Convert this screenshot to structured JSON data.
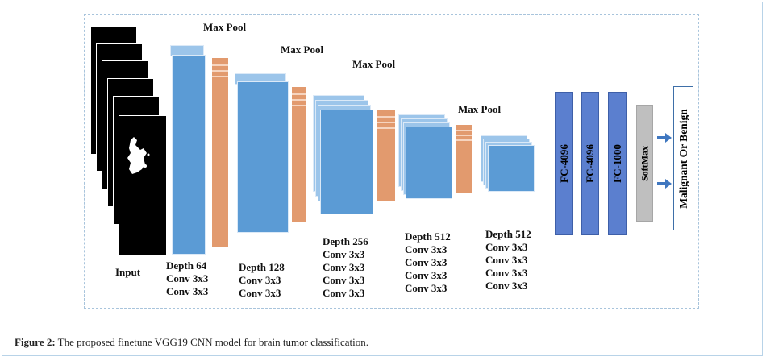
{
  "labels": {
    "maxpool": "Max Pool",
    "input": "Input",
    "stage1": [
      "Depth 64",
      "Conv 3x3",
      "Conv 3x3"
    ],
    "stage2": [
      "Depth 128",
      "Conv 3x3",
      "Conv 3x3"
    ],
    "stage3": [
      "Depth 256",
      "Conv 3x3",
      "Conv 3x3",
      "Conv 3x3",
      "Conv 3x3"
    ],
    "stage4": [
      "Depth 512",
      "Conv 3x3",
      "Conv 3x3",
      "Conv 3x3",
      "Conv 3x3"
    ],
    "stage5": [
      "Depth 512",
      "Conv 3x3",
      "Conv 3x3",
      "Conv 3x3",
      "Conv 3x3"
    ],
    "fc1": "FC-4096",
    "fc2": "FC-4096",
    "fc3": "FC-1000",
    "softmax": "SoftMax",
    "output": "Malignant Or Benign"
  },
  "caption": {
    "prefix": "Figure 2:",
    "text": " The proposed finetune VGG19 CNN model for brain tumor classification."
  },
  "colors": {
    "conv": "#5b9bd5",
    "pool": "#e29a6e",
    "fc": "#5b7fcf",
    "softmax": "#bfbfbf",
    "arrow": "#3f77c0"
  }
}
